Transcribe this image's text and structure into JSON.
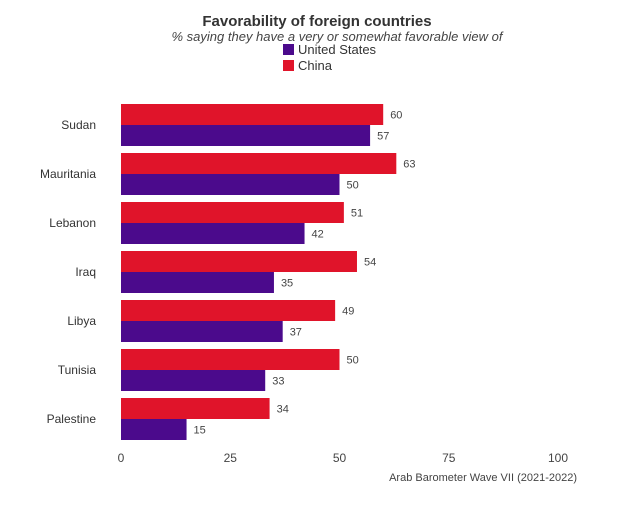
{
  "chart_data": {
    "type": "bar",
    "orientation": "horizontal",
    "title": "Favorability of foreign countries",
    "subtitle": "% saying they have a very or somewhat favorable view of",
    "categories": [
      "Sudan",
      "Mauritania",
      "Lebanon",
      "Iraq",
      "Libya",
      "Tunisia",
      "Palestine"
    ],
    "series": [
      {
        "name": "United States",
        "color": "#4b0a8c",
        "values": [
          57,
          50,
          42,
          35,
          37,
          33,
          15
        ]
      },
      {
        "name": "China",
        "color": "#e0142a",
        "values": [
          60,
          63,
          51,
          54,
          49,
          50,
          34
        ]
      }
    ],
    "legend_order": [
      "United States",
      "China"
    ],
    "legend_placement": "top-center",
    "xlim": [
      0,
      100
    ],
    "xticks": [
      0,
      25,
      50,
      75,
      100
    ],
    "grid": false,
    "source": "Arab Barometer Wave VII (2021-2022)"
  }
}
